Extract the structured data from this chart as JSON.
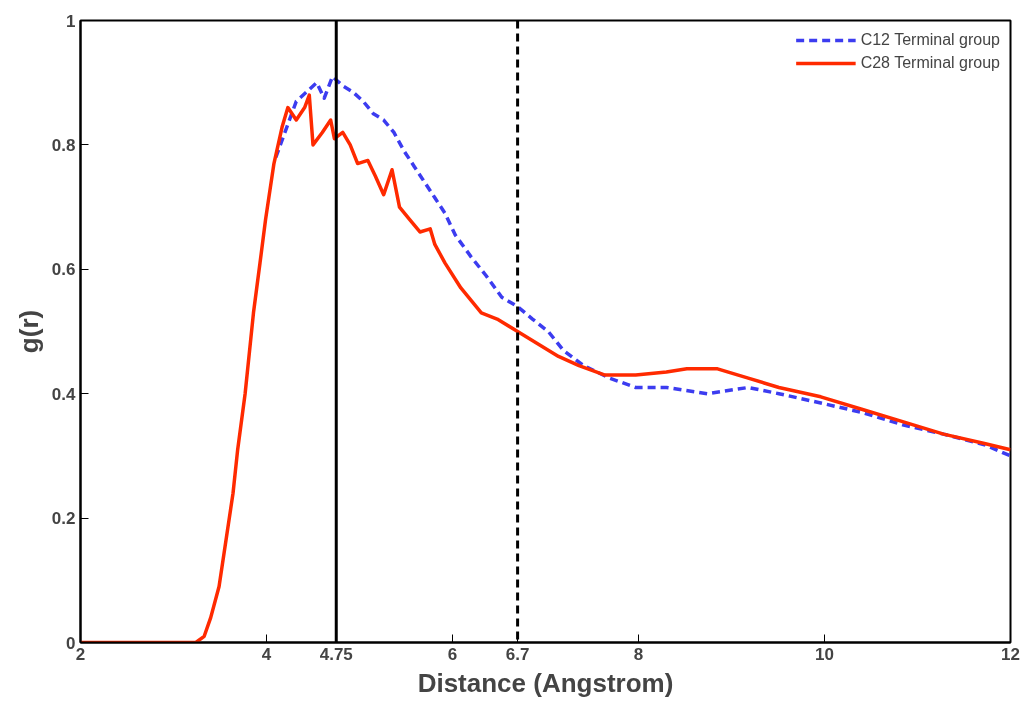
{
  "chart_data": {
    "type": "line",
    "xlabel": "Distance (Angstrom)",
    "ylabel": "g(r)",
    "xlim": [
      2,
      12
    ],
    "ylim": [
      0,
      1
    ],
    "xticks": [
      2,
      4,
      4.75,
      6,
      6.7,
      8,
      10,
      12
    ],
    "yticks": [
      0,
      0.2,
      0.4,
      0.6,
      0.8,
      1
    ],
    "grid": false,
    "legend": "top right",
    "ref_lines": [
      {
        "axis": "x",
        "value": 4.75,
        "color": "#000000",
        "line_style": "solid"
      },
      {
        "axis": "x",
        "value": 6.7,
        "color": "#000000",
        "line_style": "dashed"
      }
    ],
    "series": [
      {
        "name": "C12 Terminal group",
        "color": "#3c3cf0",
        "line_style": "dashed",
        "x": [
          4.1,
          4.21,
          4.32,
          4.43,
          4.54,
          4.62,
          4.71,
          4.82,
          4.93,
          5.04,
          5.15,
          5.26,
          5.37,
          5.48,
          5.59,
          5.7,
          5.81,
          5.92,
          6.03,
          6.2,
          6.36,
          6.53,
          6.7,
          6.86,
          7.03,
          7.19,
          7.41,
          7.69,
          7.97,
          8.3,
          8.74,
          9.18,
          9.51,
          9.96,
          10.4,
          10.84,
          11.28,
          11.72,
          12
        ],
        "values": [
          0.78,
          0.825,
          0.87,
          0.885,
          0.9,
          0.875,
          0.91,
          0.895,
          0.885,
          0.87,
          0.85,
          0.84,
          0.82,
          0.79,
          0.765,
          0.74,
          0.715,
          0.69,
          0.655,
          0.62,
          0.59,
          0.555,
          0.54,
          0.52,
          0.5,
          0.47,
          0.445,
          0.425,
          0.41,
          0.41,
          0.4,
          0.41,
          0.4,
          0.385,
          0.37,
          0.35,
          0.335,
          0.318,
          0.3
        ]
      },
      {
        "name": "C28 Terminal group",
        "color": "#ff2a00",
        "line_style": "solid",
        "x": [
          2,
          3.24,
          3.33,
          3.4,
          3.49,
          3.57,
          3.64,
          3.69,
          3.77,
          3.86,
          3.93,
          3.99,
          4.08,
          4.17,
          4.23,
          4.32,
          4.41,
          4.46,
          4.5,
          4.6,
          4.69,
          4.73,
          4.82,
          4.9,
          4.98,
          5.09,
          5.17,
          5.26,
          5.35,
          5.43,
          5.54,
          5.65,
          5.76,
          5.81,
          5.92,
          6.09,
          6.2,
          6.31,
          6.48,
          6.7,
          6.92,
          7.14,
          7.36,
          7.64,
          7.97,
          8.3,
          8.52,
          8.85,
          9.18,
          9.51,
          9.96,
          10.4,
          10.84,
          11.28,
          11.72,
          12
        ],
        "values": [
          0,
          0,
          0.01,
          0.04,
          0.09,
          0.17,
          0.24,
          0.31,
          0.4,
          0.53,
          0.61,
          0.68,
          0.77,
          0.83,
          0.86,
          0.84,
          0.86,
          0.88,
          0.8,
          0.82,
          0.84,
          0.81,
          0.82,
          0.8,
          0.77,
          0.775,
          0.75,
          0.72,
          0.76,
          0.7,
          0.68,
          0.66,
          0.665,
          0.64,
          0.61,
          0.57,
          0.55,
          0.53,
          0.52,
          0.5,
          0.48,
          0.46,
          0.445,
          0.43,
          0.43,
          0.435,
          0.44,
          0.44,
          0.425,
          0.41,
          0.395,
          0.375,
          0.355,
          0.335,
          0.32,
          0.31
        ]
      }
    ]
  }
}
